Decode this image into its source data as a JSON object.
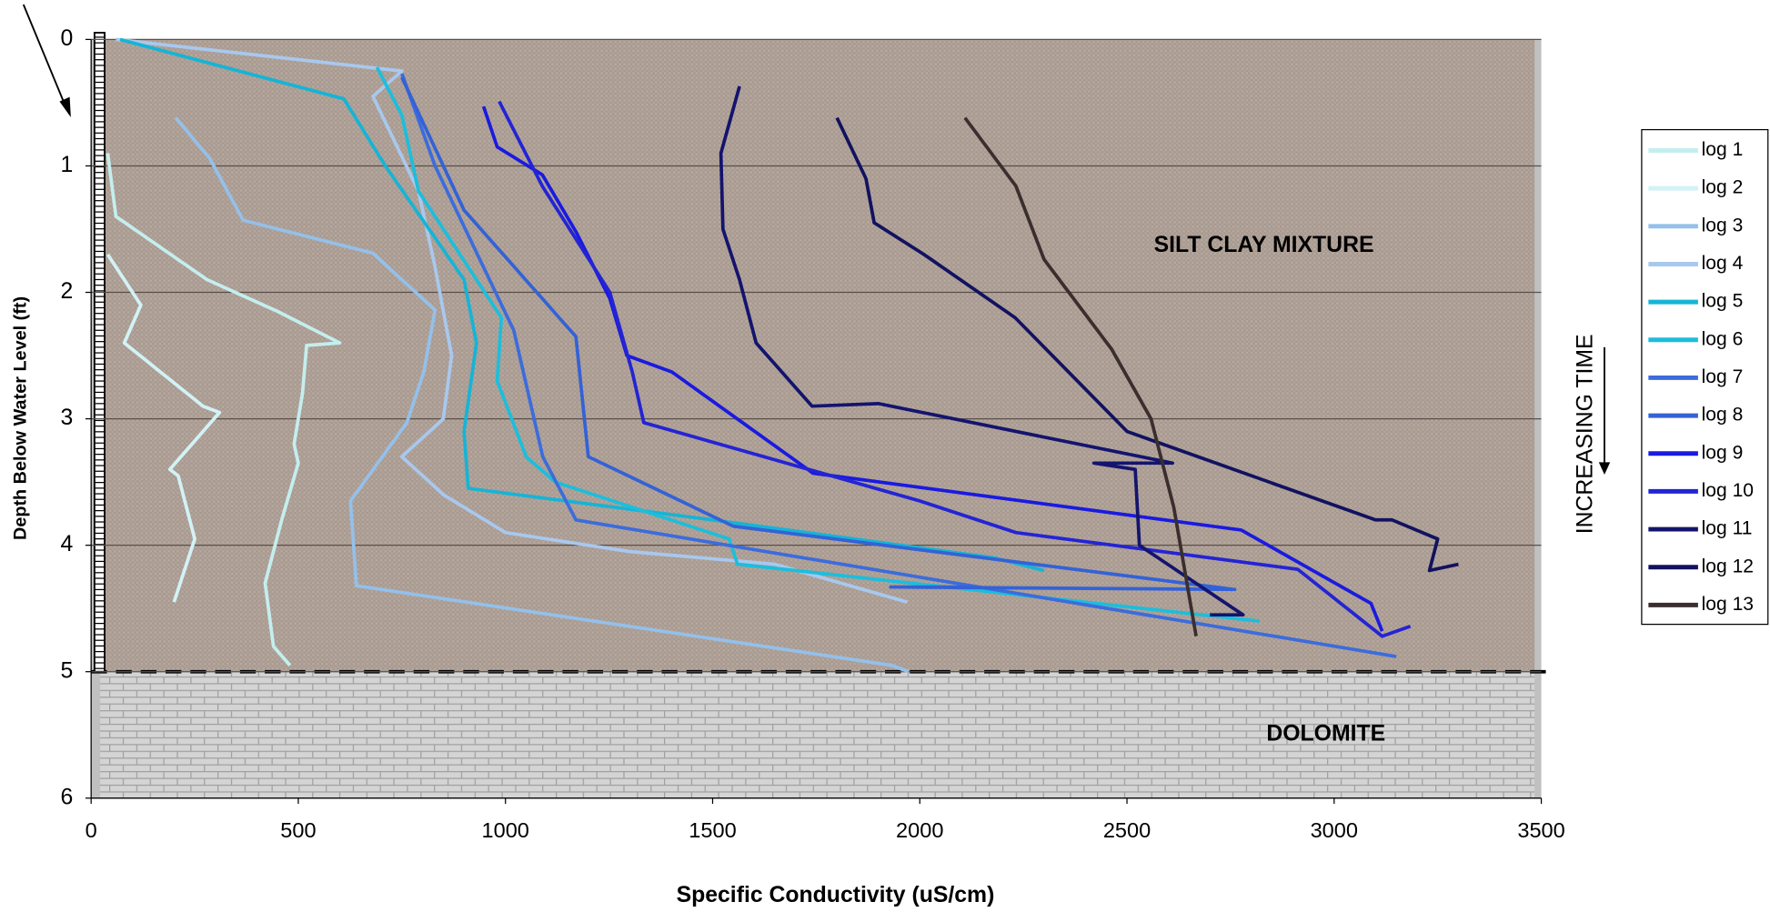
{
  "chart_data": {
    "type": "line",
    "xlabel": "Specific Conductivity (uS/cm)",
    "ylabel": "Depth Below Water Level (ft)",
    "xlim": [
      0,
      3500
    ],
    "xticks": [
      0,
      500,
      1000,
      1500,
      2000,
      2500,
      3000,
      3500
    ],
    "ylim": [
      0,
      6
    ],
    "yticks": [
      0,
      1,
      2,
      3,
      4,
      5,
      6
    ],
    "y_inverted": true,
    "grid": true,
    "legend": "right",
    "annotation": "INCREASING  TIME",
    "layers": [
      {
        "label": "SILT CLAY MIXTURE",
        "top": 0,
        "bottom": 5
      },
      {
        "label": "DOLOMITE",
        "top": 5,
        "bottom": 6
      }
    ],
    "series": [
      {
        "name": "log 1",
        "color": "#c4eeee",
        "x": [
          40,
          60,
          280,
          450,
          600,
          520,
          510,
          490,
          500,
          460,
          420,
          440,
          480
        ],
        "values": [
          0.9,
          1.4,
          1.9,
          2.15,
          2.4,
          2.42,
          2.8,
          3.2,
          3.35,
          3.8,
          4.3,
          4.8,
          4.95
        ]
      },
      {
        "name": "log 2",
        "color": "#d2f2f6",
        "x": [
          40,
          120,
          80,
          270,
          310,
          190,
          210,
          250,
          200
        ],
        "values": [
          1.7,
          2.1,
          2.4,
          2.9,
          2.95,
          3.4,
          3.45,
          3.95,
          4.45
        ]
      },
      {
        "name": "log 3",
        "color": "#94c0ea",
        "x": [
          204,
          286,
          367,
          680,
          830,
          803,
          762,
          626,
          640,
          1932,
          1973
        ],
        "values": [
          0.62,
          0.94,
          1.43,
          1.69,
          2.14,
          2.63,
          3.03,
          3.65,
          4.32,
          4.95,
          5.0
        ]
      },
      {
        "name": "log 4",
        "color": "#a8c8ee",
        "x": [
          60,
          750,
          680,
          790,
          830,
          870,
          850,
          750,
          850,
          1000,
          1300,
          1650,
          1970
        ],
        "values": [
          0,
          0.25,
          0.45,
          1.2,
          1.8,
          2.5,
          3.0,
          3.3,
          3.6,
          3.9,
          4.05,
          4.15,
          4.45
        ]
      },
      {
        "name": "log 5",
        "color": "#16b4d6",
        "x": [
          70,
          610,
          710,
          900,
          930,
          900,
          910,
          1500,
          2180,
          2300
        ],
        "values": [
          0,
          0.47,
          1.0,
          1.9,
          2.4,
          3.1,
          3.55,
          3.8,
          4.1,
          4.2
        ]
      },
      {
        "name": "log 6",
        "color": "#1cbedc",
        "x": [
          690,
          750,
          790,
          990,
          980,
          1050,
          1120,
          1540,
          1560,
          2820
        ],
        "values": [
          0.22,
          0.6,
          1.2,
          2.2,
          2.7,
          3.3,
          3.5,
          3.95,
          4.15,
          4.6
        ]
      },
      {
        "name": "log 7",
        "color": "#3c6cdc",
        "x": [
          750,
          830,
          1020,
          1090,
          1170,
          3150
        ],
        "values": [
          0.27,
          1.0,
          2.3,
          3.3,
          3.8,
          4.88
        ]
      },
      {
        "name": "log 8",
        "color": "#3462d6",
        "x": [
          750,
          900,
          1170,
          1200,
          1550,
          2760,
          1930,
          2120
        ],
        "values": [
          0.3,
          1.35,
          2.35,
          3.3,
          3.85,
          4.35,
          4.33,
          4.33
        ]
      },
      {
        "name": "log 9",
        "color": "#1a1ae0",
        "x": [
          947,
          980,
          1089,
          1170,
          1252,
          1293,
          1402,
          1742,
          2776,
          3089,
          3116
        ],
        "values": [
          0.53,
          0.85,
          1.07,
          1.52,
          2.05,
          2.5,
          2.63,
          3.43,
          3.88,
          4.46,
          4.68
        ]
      },
      {
        "name": "log 10",
        "color": "#2424d4",
        "x": [
          985,
          1089,
          1252,
          1306,
          1334,
          2000,
          2232,
          2912,
          3116,
          3184
        ],
        "values": [
          0.49,
          1.16,
          2.0,
          2.63,
          3.03,
          3.65,
          3.9,
          4.19,
          4.72,
          4.64
        ]
      },
      {
        "name": "log 11",
        "color": "#14146e",
        "x": [
          1565,
          1520,
          1525,
          1565,
          1605,
          1740,
          1900,
          2610,
          2420,
          2520,
          2530,
          2780,
          2700
        ],
        "values": [
          0.37,
          0.9,
          1.5,
          1.9,
          2.4,
          2.9,
          2.88,
          3.35,
          3.35,
          3.4,
          4.0,
          4.55,
          4.55
        ]
      },
      {
        "name": "log 12",
        "color": "#121260",
        "x": [
          1800,
          1870,
          1890,
          2010,
          2230,
          2500,
          3100,
          3140,
          3250,
          3230,
          3300
        ],
        "values": [
          0.62,
          1.1,
          1.45,
          1.7,
          2.2,
          3.1,
          3.8,
          3.8,
          3.95,
          4.2,
          4.15
        ]
      },
      {
        "name": "log 13",
        "color": "#3a2e2e",
        "x": [
          2109,
          2232,
          2300,
          2463,
          2558,
          2613,
          2667
        ],
        "values": [
          0.62,
          1.16,
          1.74,
          2.45,
          3.0,
          3.7,
          4.72
        ]
      }
    ]
  }
}
